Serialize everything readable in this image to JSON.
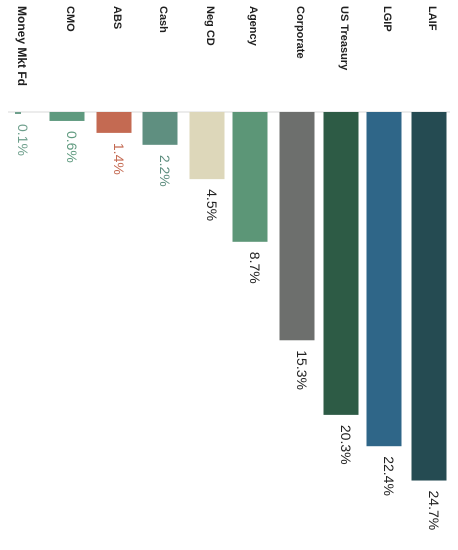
{
  "chart_data": {
    "type": "bar",
    "orientation": "vertical-bars-rotated-labels",
    "categories": [
      "Money Mkt Fd",
      "CMO",
      "ABS",
      "Cash",
      "Neg CD",
      "Agency",
      "Corporate",
      "US Treasury",
      "LGIP",
      "LAIF"
    ],
    "values": [
      0.1,
      0.6,
      1.4,
      2.2,
      4.5,
      8.7,
      15.3,
      20.3,
      22.4,
      24.7
    ],
    "value_labels": [
      "0.1%",
      "0.6%",
      "1.4%",
      "2.2%",
      "4.5%",
      "8.7%",
      "15.3%",
      "20.3%",
      "22.4%",
      "24.7%"
    ],
    "colors": [
      "#6e9f8c",
      "#5f9a7f",
      "#c46a52",
      "#5f8f80",
      "#ddd7ba",
      "#5c9677",
      "#6d6f6d",
      "#2d5b45",
      "#2f6688",
      "#254b52"
    ],
    "value_label_colors": [
      "#6e9f8c",
      "#5f9a7f",
      "#c46a52",
      "#5f8f80",
      "#222222",
      "#222222",
      "#222222",
      "#222222",
      "#222222",
      "#222222"
    ],
    "title": "",
    "xlabel": "",
    "ylabel": "",
    "ylim": [
      0,
      25
    ],
    "grid": false,
    "legend": "none"
  }
}
